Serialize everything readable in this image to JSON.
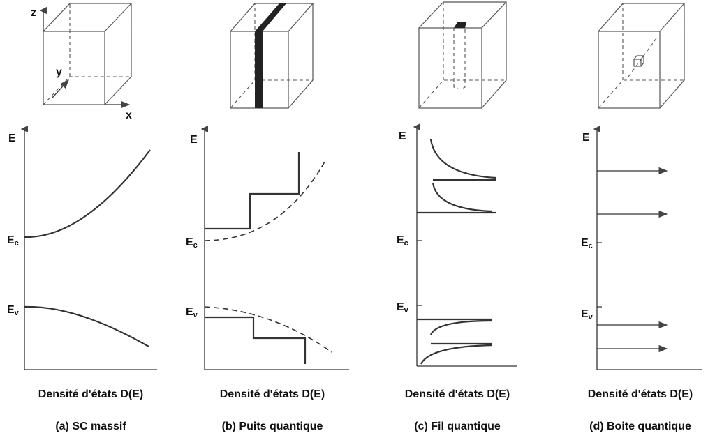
{
  "axes_labels": {
    "z": "z",
    "y": "y",
    "x": "x"
  },
  "panels": [
    {
      "e_label": "E",
      "ec": {
        "base": "E",
        "sub": "c"
      },
      "ev": {
        "base": "E",
        "sub": "v"
      },
      "xlabel": "Densité d'états D(E)",
      "caption": "(a) SC massif"
    },
    {
      "e_label": "E",
      "ec": {
        "base": "E",
        "sub": "c"
      },
      "ev": {
        "base": "E",
        "sub": "v"
      },
      "xlabel": "Densité d'états D(E)",
      "caption": "(b) Puits quantique"
    },
    {
      "e_label": "E",
      "ec": {
        "base": "E",
        "sub": "c"
      },
      "ev": {
        "base": "E",
        "sub": "v"
      },
      "xlabel": "Densité d'états D(E)",
      "caption": "(c) Fil quantique"
    },
    {
      "e_label": "E",
      "ec": {
        "base": "E",
        "sub": "c"
      },
      "ev": {
        "base": "E",
        "sub": "v"
      },
      "xlabel": "Densité d'états D(E)",
      "caption": "(d) Boite quantique"
    }
  ]
}
